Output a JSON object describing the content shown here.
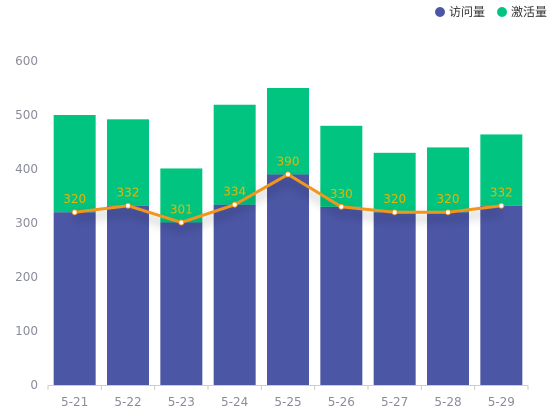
{
  "chart_data": {
    "type": "bar",
    "categories": [
      "5-21",
      "5-22",
      "5-23",
      "5-24",
      "5-25",
      "5-26",
      "5-27",
      "5-28",
      "5-29"
    ],
    "series": [
      {
        "name": "访问量",
        "type": "bar-stack",
        "values": [
          320,
          332,
          301,
          334,
          390,
          330,
          320,
          320,
          332
        ],
        "color": "#4b56a5"
      },
      {
        "name": "激活量",
        "type": "bar-stack",
        "values": [
          180,
          160,
          100,
          185,
          160,
          150,
          110,
          120,
          132
        ],
        "color": "#00c47f"
      },
      {
        "name": "",
        "type": "line",
        "values": [
          320,
          332,
          301,
          334,
          390,
          330,
          320,
          320,
          332
        ],
        "color": "#f2951f",
        "show_labels": true
      }
    ],
    "ylim": [
      0,
      600
    ],
    "yticks": [
      0,
      100,
      200,
      300,
      400,
      500,
      600
    ],
    "grid": false,
    "legend_position": "top-right",
    "label_color": "#e8b400"
  }
}
